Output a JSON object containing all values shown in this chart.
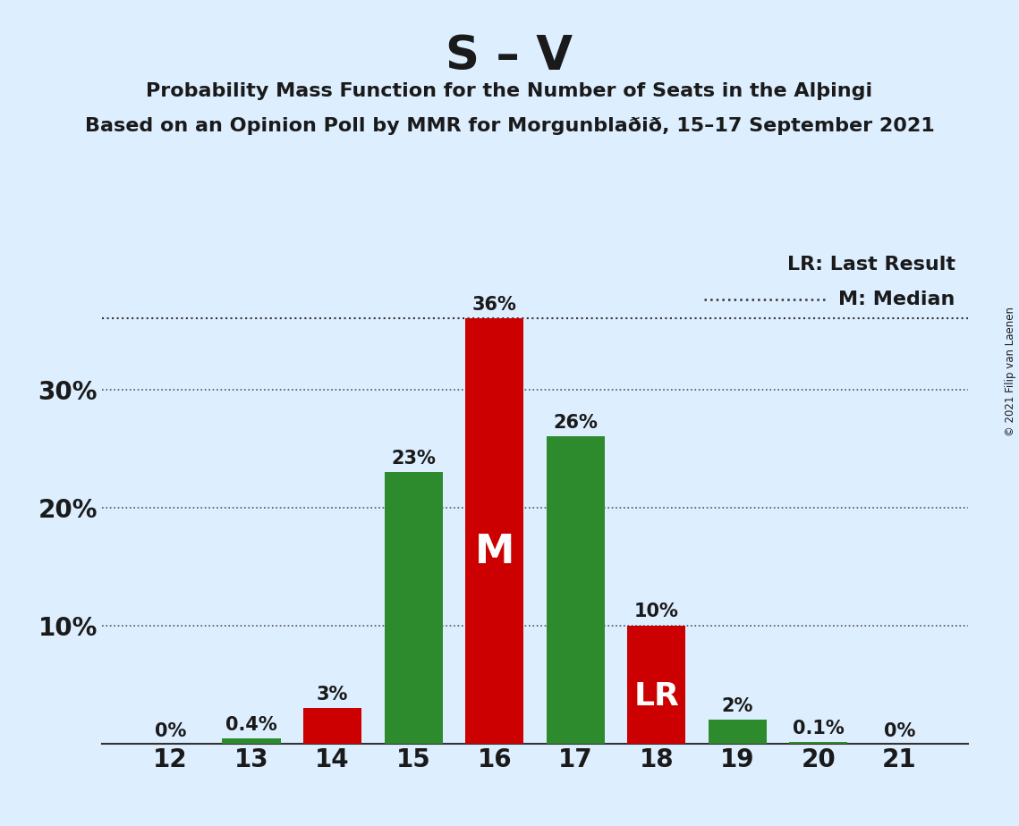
{
  "title": "S – V",
  "subtitle1": "Probability Mass Function for the Number of Seats in the Alþingi",
  "subtitle2": "Based on an Opinion Poll by MMR for Morgunblaðið, 15–17 September 2021",
  "copyright": "© 2021 Filip van Laenen",
  "seats": [
    12,
    13,
    14,
    15,
    16,
    17,
    18,
    19,
    20,
    21
  ],
  "values": [
    0.0,
    0.4,
    3.0,
    23.0,
    36.0,
    26.0,
    10.0,
    2.0,
    0.1,
    0.0
  ],
  "labels": [
    "0%",
    "0.4%",
    "3%",
    "23%",
    "36%",
    "26%",
    "10%",
    "2%",
    "0.1%",
    "0%"
  ],
  "colors": [
    "#cc0000",
    "#2d8a2d",
    "#cc0000",
    "#2d8a2d",
    "#cc0000",
    "#2d8a2d",
    "#cc0000",
    "#2d8a2d",
    "#2d8a2d",
    "#cc0000"
  ],
  "median_seat": 16,
  "lr_seat": 18,
  "median_line_y": 36.0,
  "background_color": "#ddeeff",
  "legend_lr_text": "LR: Last Result",
  "legend_m_text": "M: Median",
  "ylim": [
    0,
    42
  ],
  "ytick_positions": [
    0,
    10,
    20,
    30
  ],
  "ytick_labels": [
    "",
    "10%",
    "20%",
    "30%"
  ]
}
